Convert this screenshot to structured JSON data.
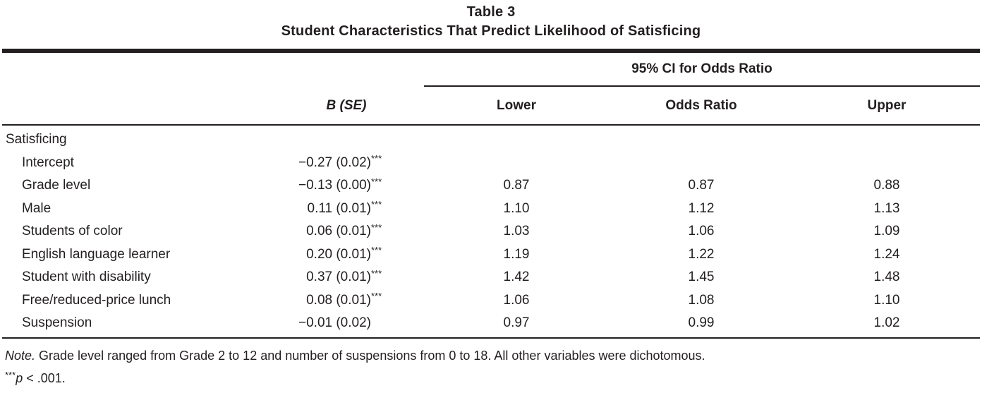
{
  "title": {
    "label": "Table 3",
    "caption": "Student Characteristics That Predict Likelihood of Satisficing"
  },
  "table": {
    "spanner": "95% CI for Odds Ratio",
    "columns": {
      "b_se": "B (SE)",
      "lower": "Lower",
      "odds_ratio": "Odds Ratio",
      "upper": "Upper"
    },
    "section": "Satisficing",
    "rows": [
      {
        "label": "Intercept",
        "b_se": "−0.27 (0.02)",
        "stars": "***",
        "lower": "",
        "odds_ratio": "",
        "upper": ""
      },
      {
        "label": "Grade level",
        "b_se": "−0.13 (0.00)",
        "stars": "***",
        "lower": "0.87",
        "odds_ratio": "0.87",
        "upper": "0.88"
      },
      {
        "label": "Male",
        "b_se": "0.11 (0.01)",
        "stars": "***",
        "lower": "1.10",
        "odds_ratio": "1.12",
        "upper": "1.13"
      },
      {
        "label": "Students of color",
        "b_se": "0.06 (0.01)",
        "stars": "***",
        "lower": "1.03",
        "odds_ratio": "1.06",
        "upper": "1.09"
      },
      {
        "label": "English language learner",
        "b_se": "0.20 (0.01)",
        "stars": "***",
        "lower": "1.19",
        "odds_ratio": "1.22",
        "upper": "1.24"
      },
      {
        "label": "Student with disability",
        "b_se": "0.37 (0.01)",
        "stars": "***",
        "lower": "1.42",
        "odds_ratio": "1.45",
        "upper": "1.48"
      },
      {
        "label": "Free/reduced-price lunch",
        "b_se": "0.08 (0.01)",
        "stars": "***",
        "lower": "1.06",
        "odds_ratio": "1.08",
        "upper": "1.10"
      },
      {
        "label": "Suspension",
        "b_se": "−0.01 (0.02)",
        "stars": "",
        "lower": "0.97",
        "odds_ratio": "0.99",
        "upper": "1.02"
      }
    ]
  },
  "notes": {
    "note_label": "Note.",
    "note_text": " Grade level ranged from Grade 2 to 12 and number of suspensions from 0 to 18. All other variables were dichotomous.",
    "sig_stars": "***",
    "sig_p": "p",
    "sig_rest": " < .001."
  },
  "colors": {
    "text": "#231f20",
    "rule": "#231f20",
    "background": "#ffffff"
  }
}
